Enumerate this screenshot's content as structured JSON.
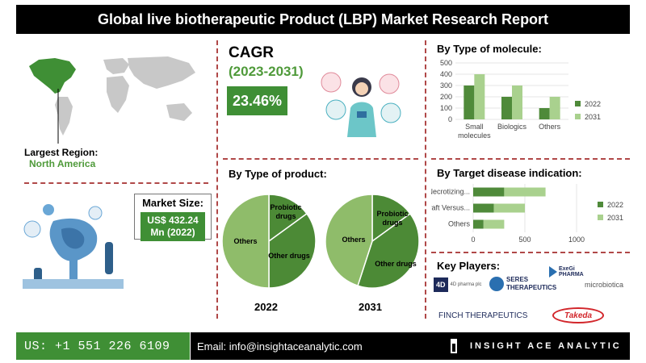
{
  "header": {
    "title": "Global live biotherapeutic Product (LBP) Market Research Report"
  },
  "region": {
    "label": "Largest Region:",
    "value": "North America"
  },
  "market_size": {
    "title": "Market Size:",
    "value": "US$ 432.24 Mn (2022)"
  },
  "cagr": {
    "title": "CAGR",
    "years": "(2023-2031)",
    "value": "23.46%"
  },
  "product": {
    "title": "By Type of product:",
    "year_a": "2022",
    "year_b": "2031"
  },
  "molecule": {
    "title": "By Type of molecule:"
  },
  "disease": {
    "title": "By Target disease indication:"
  },
  "players": {
    "title": "Key Players:",
    "items": [
      "4D pharma plc",
      "SERES THERAPEUTICS",
      "ExeGi PHARMA",
      "microbiotica",
      "FINCH THERAPEUTICS",
      "Takeda"
    ]
  },
  "footer": {
    "phone": "US: +1 551 226 6109",
    "email": "Email: info@insightaceanalytic.com",
    "brand": "INSIGHT ACE ANALYTIC"
  },
  "colors": {
    "dark_green": "#4f8a3a",
    "light_green": "#a9d18e",
    "pie_light": "#8fbc6a",
    "pie_dark": "#4c8a36",
    "accent": "#3f8f35"
  },
  "chart_data": [
    {
      "type": "bar",
      "title": "By Type of molecule:",
      "categories": [
        "Small molecules",
        "Biologics",
        "Others"
      ],
      "series": [
        {
          "name": "2022",
          "values": [
            300,
            200,
            100
          ]
        },
        {
          "name": "2031",
          "values": [
            400,
            300,
            200
          ]
        }
      ],
      "ylim": [
        0,
        500
      ],
      "yticks": [
        0,
        100,
        200,
        300,
        400,
        500
      ],
      "legend": "right"
    },
    {
      "type": "bar",
      "orientation": "horizontal",
      "stacked": true,
      "title": "By Target disease indication:",
      "categories": [
        "Necrotizing...",
        "Graft Versus...",
        "Others"
      ],
      "series": [
        {
          "name": "2022",
          "values": [
            300,
            200,
            100
          ]
        },
        {
          "name": "2031",
          "values": [
            400,
            300,
            200
          ]
        }
      ],
      "xlim": [
        0,
        1000
      ],
      "xticks": [
        0,
        500,
        1000
      ],
      "legend": "right"
    },
    {
      "type": "pie",
      "title": "2022",
      "labels": [
        "Probiotic drugs",
        "Other drugs",
        "Others"
      ],
      "values": [
        15,
        35,
        50
      ]
    },
    {
      "type": "pie",
      "title": "2031",
      "labels": [
        "Probiotic drugs",
        "Other drugs",
        "Others"
      ],
      "values": [
        15,
        40,
        45
      ]
    }
  ]
}
